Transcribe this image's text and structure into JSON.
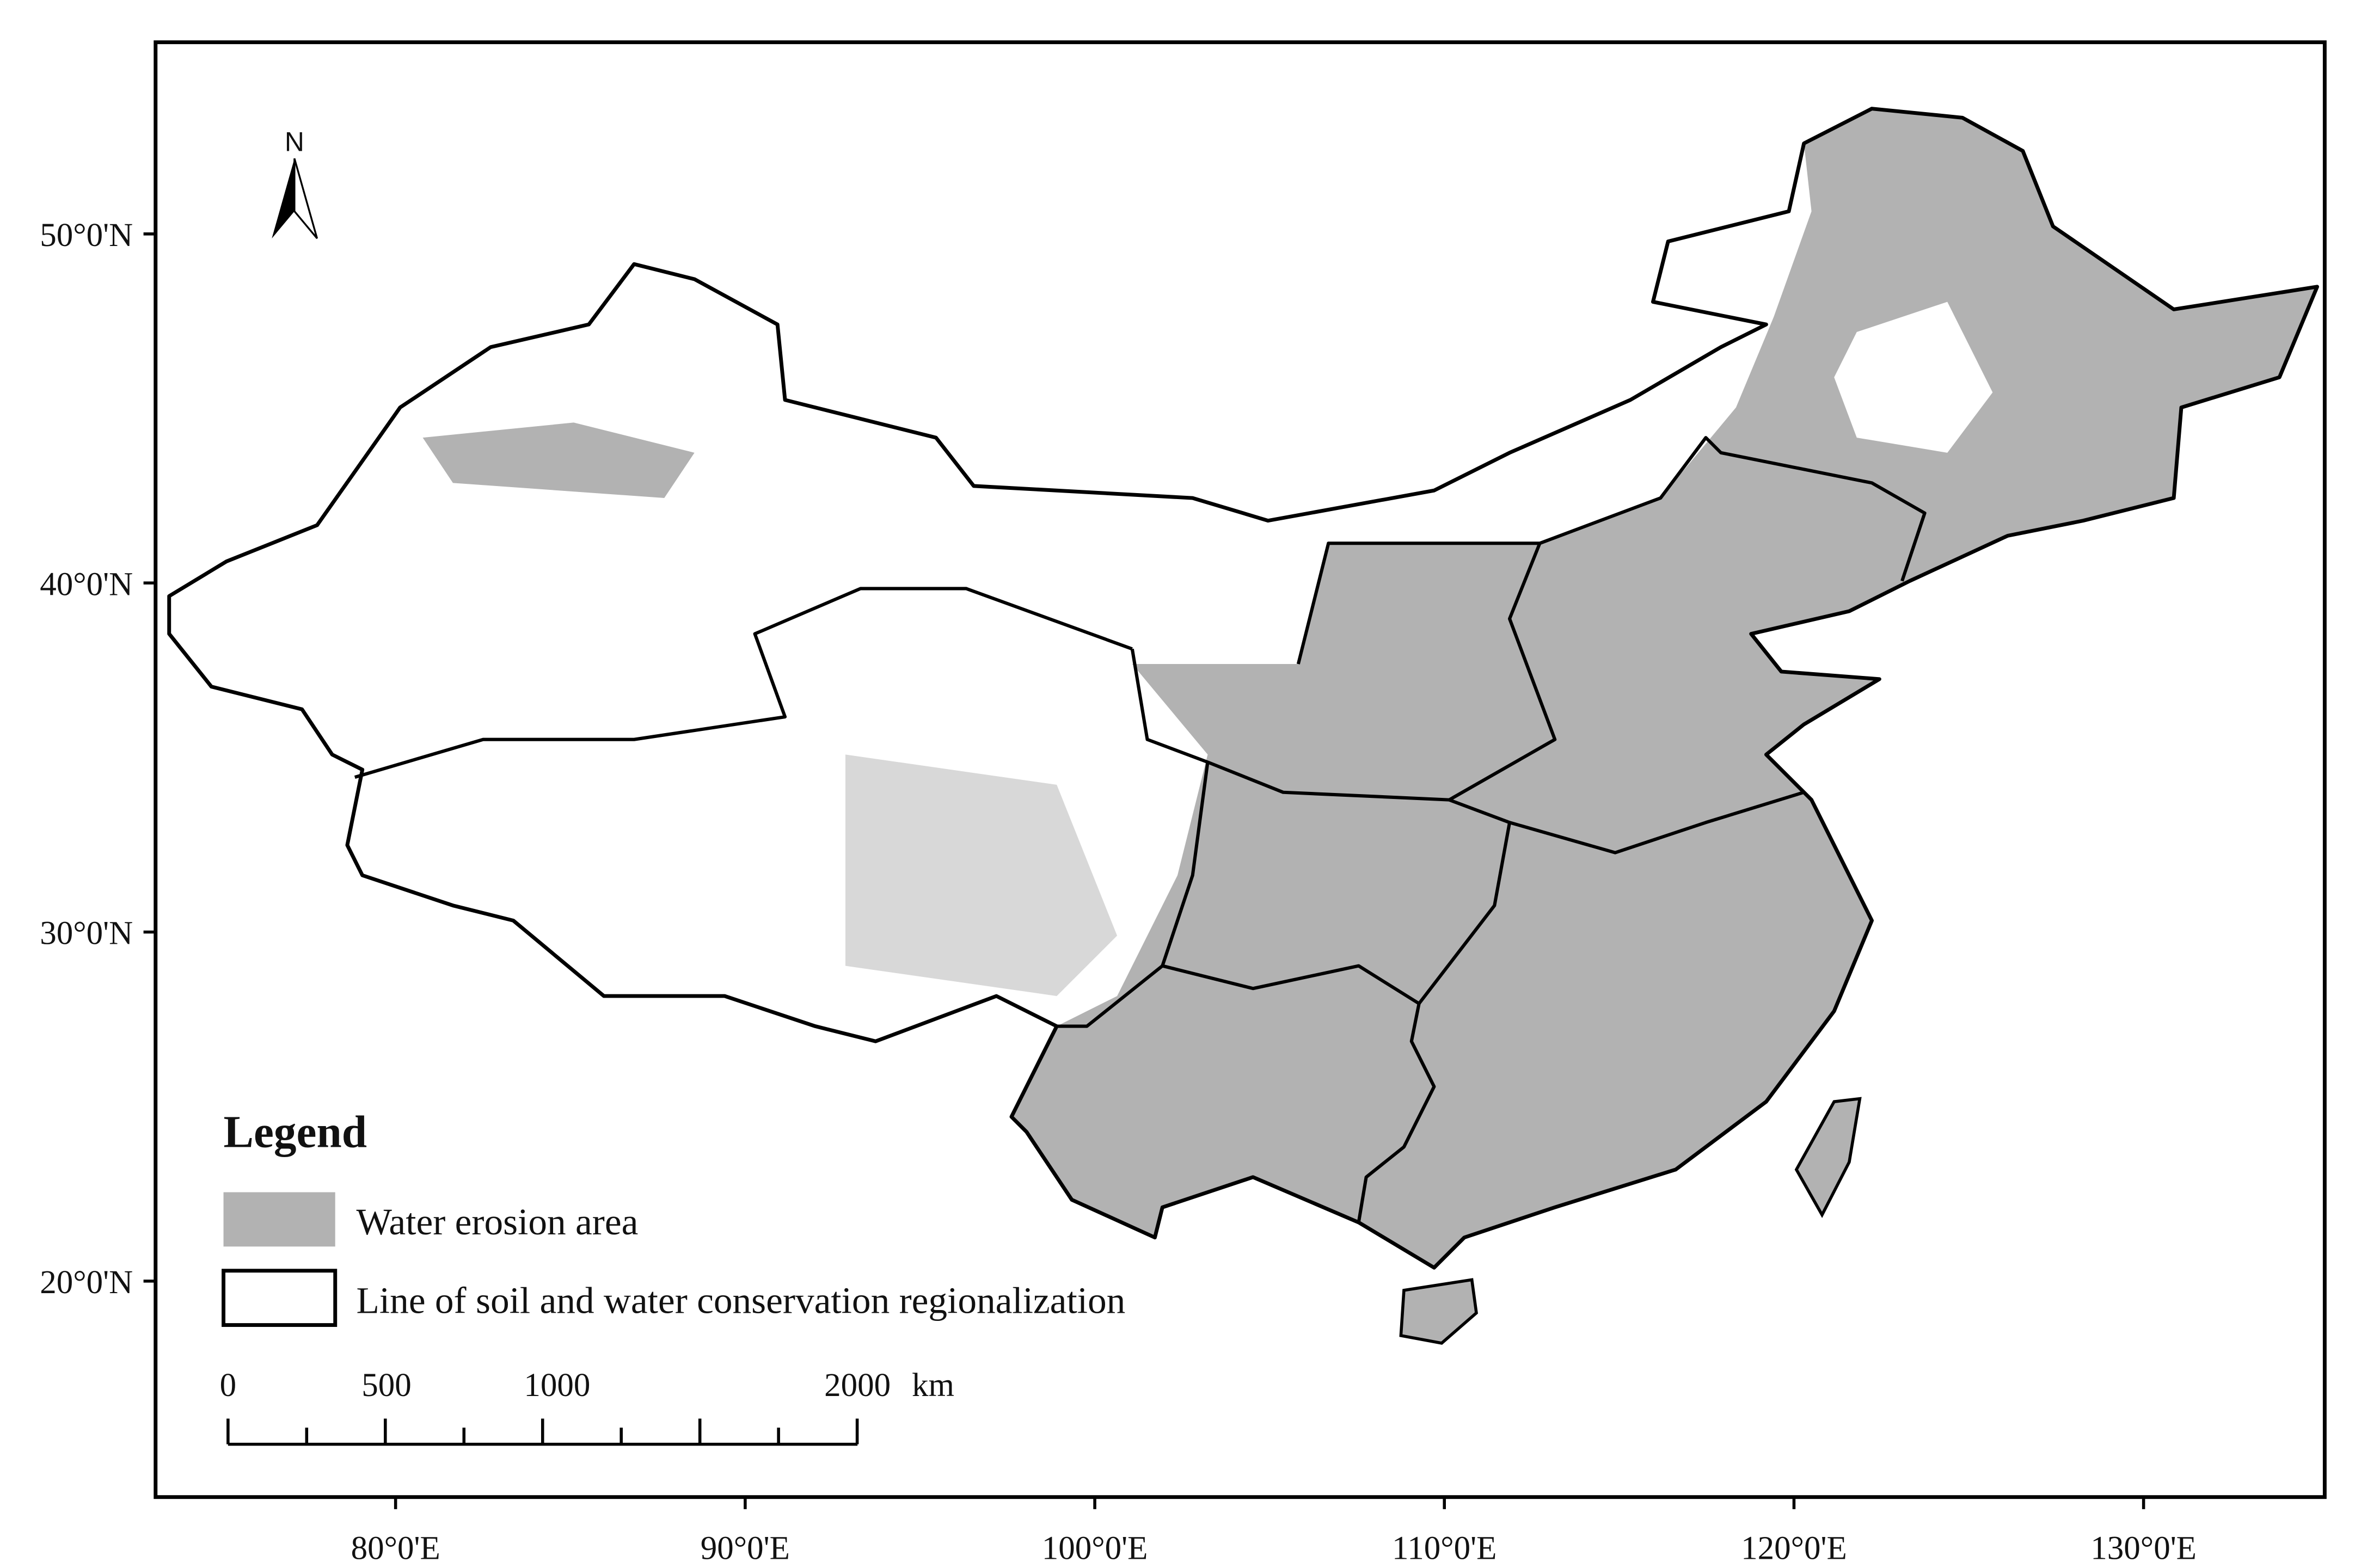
{
  "map": {
    "lon_labels": [
      "80°0'E",
      "90°0'E",
      "100°0'E",
      "110°0'E",
      "120°0'E",
      "130°0'E"
    ],
    "lat_labels": [
      "50°0'N",
      "40°0'N",
      "30°0'N",
      "20°0'N"
    ],
    "north": "N",
    "legend": {
      "title": "Legend",
      "items": [
        "Water erosion area",
        "Line of soil and water conservation regionalization"
      ]
    },
    "scale_bar": {
      "labels": [
        "0",
        "500",
        "1000",
        "2000"
      ],
      "unit": "km"
    }
  }
}
